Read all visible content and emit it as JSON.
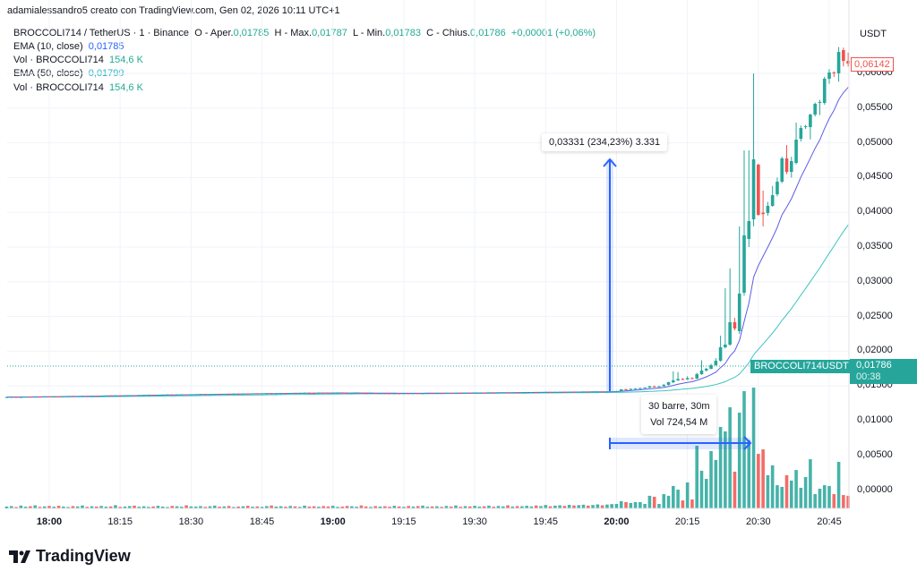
{
  "header": {
    "credit": "adamialessandro5 creato con TradingView.com, Gen 02, 2026 10:11 UTC+1",
    "symbol": "BROCCOLI714 / TetherUS · 1 · Binance",
    "o_label": "O - Aper.",
    "o_value": "0,01785",
    "h_label": "H - Max.",
    "h_value": "0,01787",
    "l_label": "L - Min.",
    "l_value": "0,01783",
    "c_label": "C - Chius.",
    "c_value": "0,01786",
    "change": "+0,00001 (+0,06%)",
    "ema10_label": "EMA (10, close)",
    "ema10_value": "0,01785",
    "vol1_label": "Vol · BROCCOLI714",
    "vol1_value": "154,6 K",
    "ema50_label": "EMA (50, close)",
    "ema50_value": "0,01799",
    "vol2_label": "Vol · BROCCOLI714",
    "vol2_value": "154,6 K"
  },
  "price_axis": {
    "currency": "USDT",
    "ticks": [
      "0,06000",
      "0,05500",
      "0,05000",
      "0,04500",
      "0,04000",
      "0,03500",
      "0,03000",
      "0,02500",
      "0,02000",
      "0,01500",
      "0,01000",
      "0,00500",
      "0,00000"
    ],
    "last_price_label": "0,06142",
    "symbol_tag": "BROCCOLI714USDT",
    "hover_price": "0,01786",
    "countdown": "00:38"
  },
  "time_axis": {
    "ticks": [
      {
        "label": "18:00",
        "bold": true
      },
      {
        "label": "18:15",
        "bold": false
      },
      {
        "label": "18:30",
        "bold": false
      },
      {
        "label": "18:45",
        "bold": false
      },
      {
        "label": "19:00",
        "bold": true
      },
      {
        "label": "19:15",
        "bold": false
      },
      {
        "label": "19:30",
        "bold": false
      },
      {
        "label": "19:45",
        "bold": false
      },
      {
        "label": "20:00",
        "bold": true
      },
      {
        "label": "20:15",
        "bold": false
      },
      {
        "label": "20:30",
        "bold": false
      },
      {
        "label": "20:45",
        "bold": false
      }
    ]
  },
  "measure": {
    "price_range_label": "0,03331 (234,23%) 3.331",
    "bars_label": "30 barre, 30m",
    "volume_label": "Vol 724,54 M"
  },
  "colors": {
    "up": "#26a69a",
    "down": "#ef5350",
    "ema10": "#5b5ce6",
    "ema50": "#3cc3c0",
    "measure": "#2962ff"
  },
  "logo": "TradingView",
  "chart_data": {
    "type": "candlestick",
    "interval": "1m",
    "start_time": "17:51",
    "price_unit": "USDT",
    "volume_unit": "M",
    "ylim": [
      0.0,
      0.06
    ],
    "grid": true,
    "indicators": [
      "EMA 10 (close)",
      "EMA 50 (close)",
      "Volume"
    ],
    "pre_pump_closes": [
      0.0134,
      0.01342,
      0.01338,
      0.01341,
      0.01345,
      0.01343,
      0.01346,
      0.01344,
      0.01348,
      0.01347,
      0.0135,
      0.01349,
      0.01352,
      0.01355,
      0.01351,
      0.01353,
      0.01356,
      0.01354,
      0.01358,
      0.01357,
      0.0136,
      0.01362,
      0.01359,
      0.01363,
      0.01361,
      0.01365,
      0.01366,
      0.01364,
      0.01368,
      0.0137,
      0.01372,
      0.01369,
      0.01371,
      0.01374,
      0.01376,
      0.01373,
      0.01377,
      0.01379,
      0.01376,
      0.01378,
      0.0138,
      0.01382,
      0.01379,
      0.01381,
      0.01384,
      0.01383,
      0.01386,
      0.01385,
      0.01388,
      0.01387,
      0.0139,
      0.01389,
      0.01392,
      0.01391,
      0.01393,
      0.01395,
      0.01392,
      0.01394,
      0.01396,
      0.01395,
      0.01398,
      0.01396,
      0.01399,
      0.01401,
      0.014,
      0.01398,
      0.01402,
      0.01401,
      0.01399,
      0.014,
      0.01401,
      0.01398,
      0.01397,
      0.01399,
      0.014,
      0.01396,
      0.01395,
      0.01397,
      0.01394,
      0.01396,
      0.01395,
      0.01393,
      0.01394,
      0.01392,
      0.01395,
      0.01393,
      0.01396,
      0.01394,
      0.01395,
      0.01397,
      0.01396,
      0.01398,
      0.01397,
      0.01399,
      0.01398,
      0.014,
      0.01399,
      0.01401,
      0.014,
      0.01402,
      0.01403,
      0.01401,
      0.01404,
      0.01403,
      0.01405,
      0.01406,
      0.01404,
      0.01407,
      0.01406,
      0.01408,
      0.01409,
      0.0141,
      0.01408,
      0.01411,
      0.01412,
      0.0141,
      0.01413,
      0.01414,
      0.01412,
      0.01415,
      0.01414,
      0.01416,
      0.01417,
      0.01415,
      0.01418,
      0.01419,
      0.01418,
      0.0142,
      0.01421
    ],
    "pre_pump_volumes": [
      1.2,
      1.5,
      0.9,
      1.8,
      1.1,
      1.4,
      2.0,
      1.0,
      1.3,
      1.6,
      1.1,
      1.7,
      1.2,
      0.9,
      1.5,
      1.3,
      1.9,
      1.0,
      1.4,
      1.2,
      1.6,
      1.1,
      1.3,
      2.1,
      1.0,
      1.2,
      1.5,
      1.8,
      1.1,
      1.4,
      1.0,
      1.3,
      1.7,
      1.2,
      0.9,
      1.6,
      1.4,
      1.1,
      2.0,
      1.3,
      1.2,
      1.5,
      1.0,
      1.4,
      1.8,
      1.1,
      1.3,
      1.6,
      0.9,
      1.2,
      1.4,
      1.7,
      1.1,
      1.3,
      1.0,
      1.5,
      1.9,
      1.2,
      1.4,
      1.1,
      1.6,
      1.3,
      1.0,
      1.8,
      1.2,
      1.4,
      1.1,
      1.5,
      1.3,
      1.7,
      1.0,
      1.2,
      1.6,
      1.4,
      1.1,
      1.9,
      1.3,
      1.0,
      1.5,
      1.2,
      1.4,
      1.1,
      1.7,
      1.3,
      1.0,
      1.6,
      1.2,
      1.5,
      1.8,
      1.1,
      1.3,
      1.4,
      1.0,
      1.6,
      1.2,
      1.9,
      1.1,
      1.5,
      1.3,
      1.7,
      1.2,
      1.4,
      1.8,
      1.1,
      1.6,
      1.3,
      2.0,
      1.2,
      1.5,
      1.4,
      1.7,
      1.3,
      1.9,
      1.5,
      2.2,
      1.4,
      1.8,
      2.0,
      1.6,
      2.3,
      1.9,
      2.1,
      2.4,
      1.8,
      2.2,
      2.6,
      2.0,
      2.5,
      2.8
    ],
    "candles_columns": [
      "time",
      "open",
      "high",
      "low",
      "close",
      "volume"
    ],
    "candles": [
      [
        "20:00",
        0.01422,
        0.0143,
        0.01418,
        0.01425,
        2.9
      ],
      [
        "20:01",
        0.01425,
        0.01455,
        0.0142,
        0.01451,
        4.7
      ],
      [
        "20:02",
        0.01451,
        0.0146,
        0.0144,
        0.01445,
        4.1
      ],
      [
        "20:03",
        0.01445,
        0.01462,
        0.0144,
        0.01458,
        3.5
      ],
      [
        "20:04",
        0.01458,
        0.01468,
        0.0145,
        0.01462,
        4.1
      ],
      [
        "20:05",
        0.01462,
        0.01475,
        0.01455,
        0.0147,
        4.1
      ],
      [
        "20:06",
        0.0147,
        0.0148,
        0.01462,
        0.01477,
        2.9
      ],
      [
        "20:07",
        0.01477,
        0.015,
        0.0147,
        0.01495,
        8.2
      ],
      [
        "20:08",
        0.01495,
        0.01505,
        0.0148,
        0.01488,
        7.6
      ],
      [
        "20:09",
        0.01488,
        0.015,
        0.01482,
        0.01496,
        2.9
      ],
      [
        "20:10",
        0.01496,
        0.0153,
        0.0149,
        0.01515,
        9.3
      ],
      [
        "20:11",
        0.01515,
        0.0156,
        0.01508,
        0.01554,
        8.2
      ],
      [
        "20:12",
        0.01554,
        0.01709,
        0.0154,
        0.0158,
        14.6
      ],
      [
        "20:13",
        0.0158,
        0.017,
        0.0157,
        0.016,
        12.2
      ],
      [
        "20:14",
        0.016,
        0.01615,
        0.01585,
        0.01593,
        5.2
      ],
      [
        "20:15",
        0.01593,
        0.0164,
        0.01588,
        0.01612,
        16.9
      ],
      [
        "20:16",
        0.01612,
        0.01625,
        0.01598,
        0.01606,
        5.8
      ],
      [
        "20:17",
        0.01606,
        0.0169,
        0.016,
        0.0167,
        40.8
      ],
      [
        "20:18",
        0.0167,
        0.0187,
        0.0166,
        0.01722,
        24.5
      ],
      [
        "20:19",
        0.01722,
        0.0176,
        0.0171,
        0.01747,
        19.2
      ],
      [
        "20:20",
        0.01747,
        0.0182,
        0.0174,
        0.01799,
        37.3
      ],
      [
        "20:21",
        0.01799,
        0.019,
        0.0179,
        0.01863,
        31.5
      ],
      [
        "20:22",
        0.01863,
        0.02224,
        0.0185,
        0.02057,
        53.0
      ],
      [
        "20:23",
        0.02057,
        0.02907,
        0.0204,
        0.02095,
        50.1
      ],
      [
        "20:24",
        0.02095,
        0.03191,
        0.0208,
        0.02418,
        65.8
      ],
      [
        "20:25",
        0.02418,
        0.0248,
        0.023,
        0.02327,
        23.9
      ],
      [
        "20:26",
        0.02289,
        0.03797,
        0.0225,
        0.0283,
        62.3
      ],
      [
        "20:27",
        0.02843,
        0.04892,
        0.028,
        0.03668,
        76.3
      ],
      [
        "20:28",
        0.03616,
        0.04892,
        0.035,
        0.03874,
        44.3
      ],
      [
        "20:29",
        0.03899,
        0.06,
        0.038,
        0.04763,
        78.6
      ],
      [
        "20:30",
        0.04686,
        0.047,
        0.0395,
        0.03964,
        35.5
      ],
      [
        "20:31",
        0.03995,
        0.04312,
        0.03797,
        0.03975,
        38.4
      ],
      [
        "20:32",
        0.0399,
        0.0415,
        0.0395,
        0.04093,
        21.6
      ],
      [
        "20:33",
        0.04093,
        0.0438,
        0.0408,
        0.04247,
        28.0
      ],
      [
        "20:34",
        0.0426,
        0.045,
        0.0423,
        0.04441,
        15.1
      ],
      [
        "20:35",
        0.04441,
        0.048,
        0.0442,
        0.04776,
        14.0
      ],
      [
        "20:36",
        0.04776,
        0.04969,
        0.0455,
        0.04582,
        21.6
      ],
      [
        "20:37",
        0.04582,
        0.048,
        0.045,
        0.04737,
        18.1
      ],
      [
        "20:38",
        0.04711,
        0.05291,
        0.0469,
        0.05046,
        25.0
      ],
      [
        "20:39",
        0.05059,
        0.0525,
        0.0502,
        0.05214,
        13.4
      ],
      [
        "20:40",
        0.05227,
        0.0526,
        0.052,
        0.0524,
        20.4
      ],
      [
        "20:41",
        0.05227,
        0.0542,
        0.0505,
        0.05407,
        32.0
      ],
      [
        "20:42",
        0.05407,
        0.0558,
        0.0538,
        0.05562,
        9.3
      ],
      [
        "20:43",
        0.05575,
        0.0562,
        0.054,
        0.05588,
        12.8
      ],
      [
        "20:44",
        0.05575,
        0.0595,
        0.0555,
        0.05923,
        15.1
      ],
      [
        "20:45",
        0.05923,
        0.0606,
        0.0585,
        0.06013,
        14.6
      ],
      [
        "20:46",
        0.06013,
        0.0603,
        0.0595,
        0.06,
        9.3
      ],
      [
        "20:47",
        0.06,
        0.0638,
        0.0588,
        0.06309,
        30.3
      ],
      [
        "20:48",
        0.06335,
        0.0637,
        0.061,
        0.0618,
        8.7
      ],
      [
        "20:49",
        0.0618,
        0.063,
        0.061,
        0.06142,
        8.2
      ]
    ]
  }
}
